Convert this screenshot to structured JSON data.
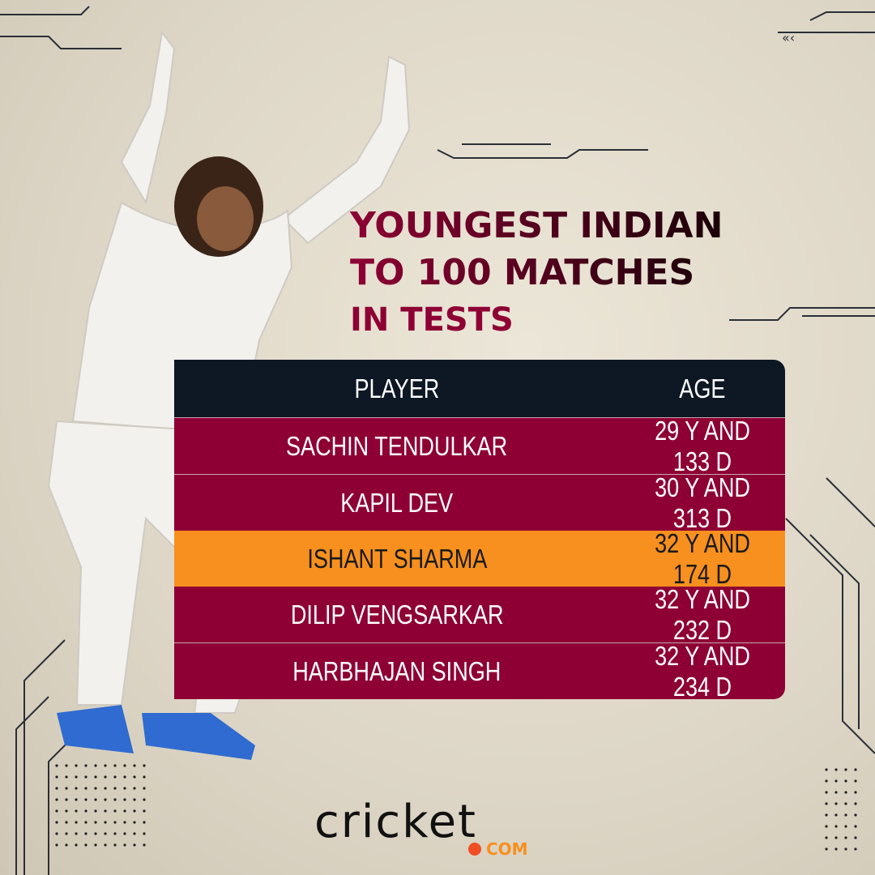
{
  "title": {
    "line1": "YOUNGEST INDIAN",
    "line2": "TO 100 MATCHES",
    "line3": "IN TESTS"
  },
  "table": {
    "headers": {
      "player": "PLAYER",
      "age": "AGE"
    },
    "rows": [
      {
        "player": "SACHIN TENDULKAR",
        "age": "29 Y AND 133 D",
        "highlight": false
      },
      {
        "player": "KAPIL DEV",
        "age": "30 Y AND 313 D",
        "highlight": false
      },
      {
        "player": "ISHANT SHARMA",
        "age": "32 Y AND 174 D",
        "highlight": true
      },
      {
        "player": "DILIP VENGSARKAR",
        "age": "32 Y AND 232 D",
        "highlight": false
      },
      {
        "player": "HARBHAJAN SINGH",
        "age": "32 Y AND 234 D",
        "highlight": false
      }
    ]
  },
  "logo": {
    "name": "cricket",
    "suffix": "COM"
  },
  "colors": {
    "maroon": "#8e0034",
    "header": "#0d1824",
    "highlight": "#f7901e",
    "logo_dot": "#f04e23"
  }
}
